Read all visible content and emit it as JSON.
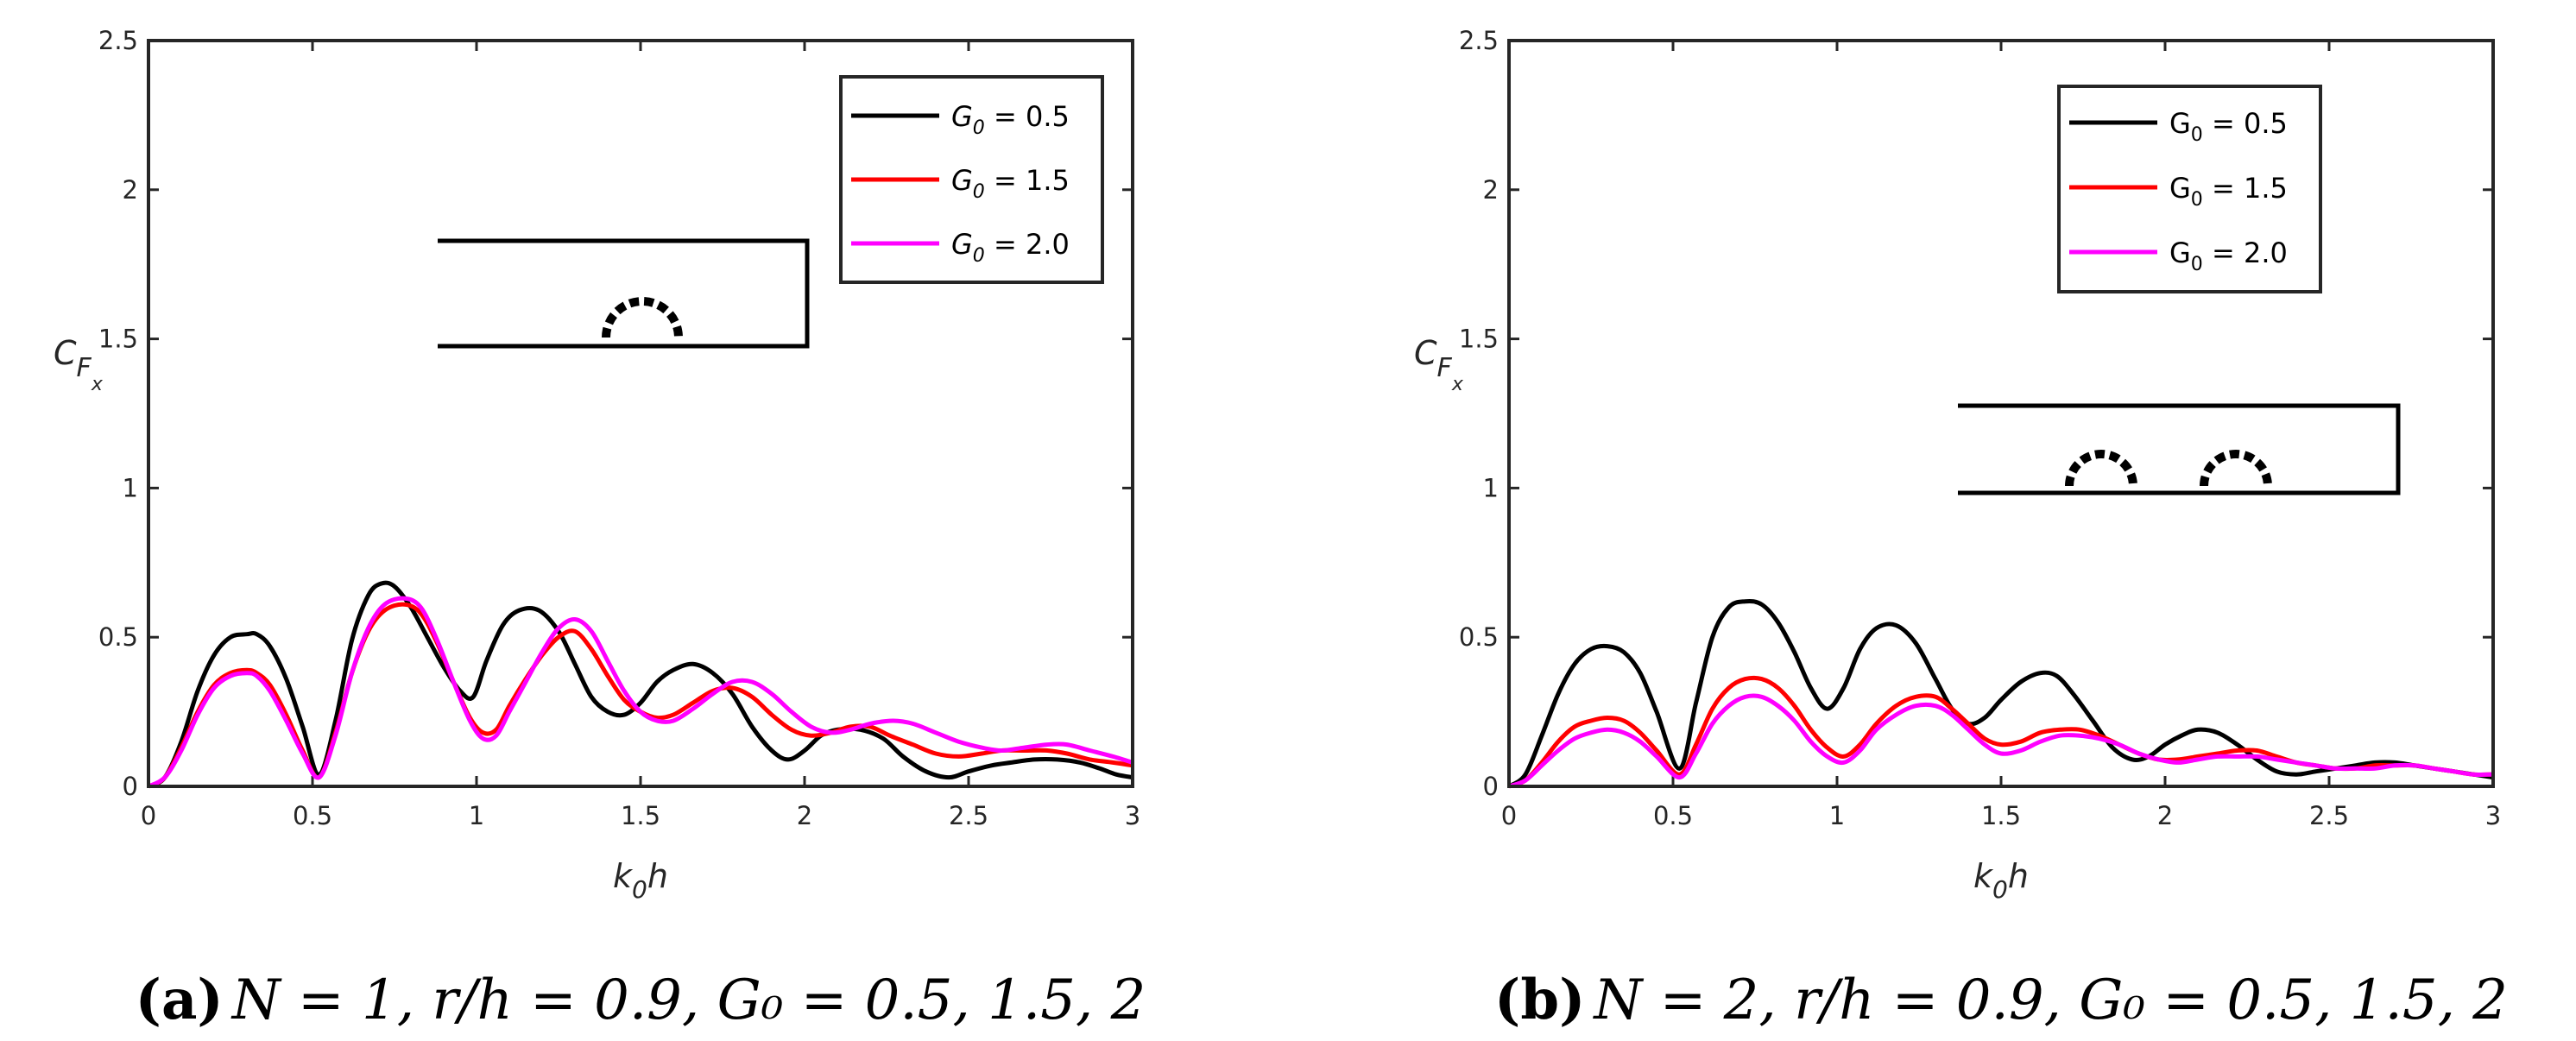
{
  "chart_data": [
    {
      "type": "line",
      "panel": "a",
      "caption_tag": "(a)",
      "caption_body": "N = 1, r/h = 0.9,  G₀ = 0.5, 1.5, 2",
      "xlabel_k": "k",
      "xlabel_sub": "0",
      "xlabel_h": "h",
      "ylabel_c": "C",
      "ylabel_f": "F",
      "ylabel_x": "x",
      "xlim": [
        0,
        3
      ],
      "ylim": [
        0,
        2.5
      ],
      "xticks": [
        0,
        0.5,
        1,
        1.5,
        2,
        2.5,
        3
      ],
      "xtick_labels": [
        "0",
        "0.5",
        "1",
        "1.5",
        "2",
        "2.5",
        "3"
      ],
      "yticks": [
        0,
        0.5,
        1,
        1.5,
        2,
        2.5
      ],
      "ytick_labels": [
        "0",
        "0.5",
        "1",
        "1.5",
        "2",
        "2.5"
      ],
      "legend_position": "top-right",
      "legend_symbol": "G",
      "legend_sub": "0",
      "legend_italic": true,
      "series": [
        {
          "name": "G0 = 0.5",
          "legend_value": " = 0.5",
          "color": "#000000",
          "x": [
            0,
            0.05,
            0.1,
            0.15,
            0.2,
            0.25,
            0.3,
            0.33,
            0.37,
            0.42,
            0.47,
            0.52,
            0.57,
            0.62,
            0.67,
            0.71,
            0.75,
            0.8,
            0.85,
            0.9,
            0.95,
            0.99,
            1.03,
            1.08,
            1.13,
            1.19,
            1.25,
            1.3,
            1.35,
            1.4,
            1.45,
            1.5,
            1.55,
            1.6,
            1.66,
            1.72,
            1.78,
            1.84,
            1.9,
            1.95,
            2.0,
            2.05,
            2.1,
            2.17,
            2.24,
            2.3,
            2.37,
            2.44,
            2.5,
            2.57,
            2.63,
            2.7,
            2.77,
            2.84,
            2.9,
            2.95,
            3.0
          ],
          "y": [
            0,
            0.03,
            0.15,
            0.32,
            0.44,
            0.5,
            0.51,
            0.51,
            0.47,
            0.36,
            0.2,
            0.04,
            0.22,
            0.49,
            0.64,
            0.68,
            0.67,
            0.6,
            0.5,
            0.4,
            0.32,
            0.3,
            0.42,
            0.54,
            0.59,
            0.59,
            0.52,
            0.41,
            0.3,
            0.25,
            0.24,
            0.28,
            0.35,
            0.39,
            0.41,
            0.38,
            0.31,
            0.2,
            0.12,
            0.09,
            0.12,
            0.17,
            0.19,
            0.19,
            0.16,
            0.1,
            0.05,
            0.03,
            0.05,
            0.07,
            0.08,
            0.09,
            0.09,
            0.08,
            0.06,
            0.04,
            0.03
          ]
        },
        {
          "name": "G0 = 1.5",
          "legend_value": " = 1.5",
          "color": "#ff0000",
          "x": [
            0,
            0.05,
            0.1,
            0.15,
            0.2,
            0.25,
            0.3,
            0.33,
            0.37,
            0.42,
            0.47,
            0.52,
            0.57,
            0.62,
            0.67,
            0.72,
            0.78,
            0.83,
            0.88,
            0.93,
            0.98,
            1.02,
            1.06,
            1.1,
            1.15,
            1.2,
            1.25,
            1.3,
            1.35,
            1.4,
            1.45,
            1.5,
            1.55,
            1.6,
            1.66,
            1.72,
            1.78,
            1.84,
            1.9,
            1.96,
            2.02,
            2.08,
            2.14,
            2.2,
            2.26,
            2.33,
            2.4,
            2.47,
            2.54,
            2.6,
            2.67,
            2.74,
            2.8,
            2.87,
            2.94,
            3.0
          ],
          "y": [
            0,
            0.03,
            0.13,
            0.25,
            0.34,
            0.38,
            0.39,
            0.38,
            0.34,
            0.24,
            0.12,
            0.03,
            0.18,
            0.38,
            0.52,
            0.59,
            0.61,
            0.58,
            0.48,
            0.35,
            0.23,
            0.18,
            0.19,
            0.27,
            0.36,
            0.44,
            0.5,
            0.52,
            0.46,
            0.37,
            0.29,
            0.25,
            0.23,
            0.24,
            0.28,
            0.32,
            0.33,
            0.3,
            0.24,
            0.19,
            0.17,
            0.18,
            0.2,
            0.2,
            0.17,
            0.14,
            0.11,
            0.1,
            0.11,
            0.12,
            0.12,
            0.12,
            0.11,
            0.09,
            0.08,
            0.07
          ]
        },
        {
          "name": "G0 = 2.0",
          "legend_value": " = 2.0",
          "color": "#ff00ff",
          "x": [
            0,
            0.05,
            0.1,
            0.15,
            0.2,
            0.25,
            0.3,
            0.33,
            0.37,
            0.42,
            0.47,
            0.52,
            0.57,
            0.62,
            0.67,
            0.72,
            0.78,
            0.83,
            0.88,
            0.93,
            0.98,
            1.02,
            1.06,
            1.1,
            1.15,
            1.2,
            1.25,
            1.3,
            1.35,
            1.4,
            1.45,
            1.5,
            1.55,
            1.6,
            1.66,
            1.72,
            1.78,
            1.84,
            1.9,
            1.96,
            2.02,
            2.08,
            2.14,
            2.2,
            2.27,
            2.33,
            2.4,
            2.47,
            2.54,
            2.6,
            2.67,
            2.74,
            2.8,
            2.87,
            2.94,
            3.0
          ],
          "y": [
            0,
            0.03,
            0.12,
            0.24,
            0.33,
            0.37,
            0.38,
            0.37,
            0.32,
            0.22,
            0.11,
            0.03,
            0.17,
            0.38,
            0.53,
            0.61,
            0.63,
            0.6,
            0.49,
            0.35,
            0.22,
            0.16,
            0.17,
            0.25,
            0.35,
            0.45,
            0.53,
            0.56,
            0.52,
            0.42,
            0.32,
            0.25,
            0.22,
            0.22,
            0.26,
            0.31,
            0.35,
            0.35,
            0.31,
            0.25,
            0.2,
            0.18,
            0.19,
            0.21,
            0.22,
            0.21,
            0.18,
            0.15,
            0.13,
            0.12,
            0.13,
            0.14,
            0.14,
            0.12,
            0.1,
            0.08
          ]
        }
      ]
    },
    {
      "type": "line",
      "panel": "b",
      "caption_tag": "(b)",
      "caption_body": "N = 2, r/h = 0.9,  G₀ = 0.5, 1.5, 2",
      "xlabel_k": "k",
      "xlabel_sub": "0",
      "xlabel_h": "h",
      "ylabel_c": "C",
      "ylabel_f": "F",
      "ylabel_x": "x",
      "xlim": [
        0,
        3
      ],
      "ylim": [
        0,
        2.5
      ],
      "xticks": [
        0,
        0.5,
        1,
        1.5,
        2,
        2.5,
        3
      ],
      "xtick_labels": [
        "0",
        "0.5",
        "1",
        "1.5",
        "2",
        "2.5",
        "3"
      ],
      "yticks": [
        0,
        0.5,
        1,
        1.5,
        2,
        2.5
      ],
      "ytick_labels": [
        "0",
        "0.5",
        "1",
        "1.5",
        "2",
        "2.5"
      ],
      "legend_position": "top-right",
      "legend_symbol": "G",
      "legend_sub": "0",
      "legend_italic": false,
      "series": [
        {
          "name": "G0 = 0.5",
          "legend_value": " = 0.5",
          "color": "#000000",
          "x": [
            0,
            0.05,
            0.1,
            0.15,
            0.2,
            0.25,
            0.3,
            0.35,
            0.4,
            0.45,
            0.52,
            0.57,
            0.62,
            0.67,
            0.72,
            0.77,
            0.82,
            0.87,
            0.92,
            0.97,
            1.02,
            1.07,
            1.12,
            1.18,
            1.24,
            1.3,
            1.35,
            1.4,
            1.45,
            1.5,
            1.56,
            1.62,
            1.67,
            1.72,
            1.78,
            1.84,
            1.9,
            1.95,
            2.0,
            2.05,
            2.1,
            2.16,
            2.22,
            2.28,
            2.34,
            2.4,
            2.46,
            2.52,
            2.58,
            2.64,
            2.7,
            2.76,
            2.82,
            2.88,
            2.94,
            3.0
          ],
          "y": [
            0,
            0.04,
            0.17,
            0.31,
            0.41,
            0.46,
            0.47,
            0.45,
            0.38,
            0.25,
            0.06,
            0.28,
            0.5,
            0.6,
            0.62,
            0.61,
            0.55,
            0.45,
            0.33,
            0.26,
            0.33,
            0.46,
            0.53,
            0.54,
            0.48,
            0.36,
            0.26,
            0.21,
            0.23,
            0.29,
            0.35,
            0.38,
            0.37,
            0.31,
            0.22,
            0.13,
            0.09,
            0.1,
            0.14,
            0.17,
            0.19,
            0.18,
            0.14,
            0.09,
            0.05,
            0.04,
            0.05,
            0.06,
            0.07,
            0.08,
            0.08,
            0.07,
            0.06,
            0.05,
            0.04,
            0.03
          ]
        },
        {
          "name": "G0 = 1.5",
          "legend_value": " = 1.5",
          "color": "#ff0000",
          "x": [
            0,
            0.05,
            0.1,
            0.15,
            0.2,
            0.25,
            0.3,
            0.35,
            0.4,
            0.45,
            0.52,
            0.57,
            0.62,
            0.67,
            0.72,
            0.77,
            0.82,
            0.87,
            0.92,
            0.97,
            1.02,
            1.07,
            1.12,
            1.18,
            1.24,
            1.3,
            1.35,
            1.4,
            1.45,
            1.5,
            1.56,
            1.62,
            1.68,
            1.74,
            1.8,
            1.86,
            1.92,
            1.98,
            2.04,
            2.1,
            2.16,
            2.22,
            2.28,
            2.34,
            2.4,
            2.46,
            2.52,
            2.58,
            2.64,
            2.7,
            2.76,
            2.82,
            2.88,
            2.94,
            3.0
          ],
          "y": [
            0,
            0.02,
            0.08,
            0.15,
            0.2,
            0.22,
            0.23,
            0.22,
            0.18,
            0.12,
            0.04,
            0.14,
            0.26,
            0.33,
            0.36,
            0.36,
            0.33,
            0.27,
            0.19,
            0.13,
            0.1,
            0.14,
            0.21,
            0.27,
            0.3,
            0.3,
            0.26,
            0.21,
            0.16,
            0.14,
            0.15,
            0.18,
            0.19,
            0.19,
            0.17,
            0.14,
            0.11,
            0.09,
            0.09,
            0.1,
            0.11,
            0.12,
            0.12,
            0.1,
            0.08,
            0.07,
            0.06,
            0.06,
            0.07,
            0.07,
            0.07,
            0.06,
            0.05,
            0.04,
            0.04
          ]
        },
        {
          "name": "G0 = 2.0",
          "legend_value": " = 2.0",
          "color": "#ff00ff",
          "x": [
            0,
            0.05,
            0.1,
            0.15,
            0.2,
            0.25,
            0.3,
            0.35,
            0.4,
            0.45,
            0.52,
            0.57,
            0.62,
            0.67,
            0.72,
            0.77,
            0.82,
            0.87,
            0.92,
            0.97,
            1.02,
            1.07,
            1.12,
            1.18,
            1.24,
            1.3,
            1.35,
            1.4,
            1.45,
            1.5,
            1.56,
            1.62,
            1.68,
            1.74,
            1.8,
            1.86,
            1.92,
            1.98,
            2.04,
            2.1,
            2.16,
            2.22,
            2.28,
            2.34,
            2.4,
            2.46,
            2.52,
            2.58,
            2.64,
            2.7,
            2.76,
            2.82,
            2.88,
            2.94,
            3.0
          ],
          "y": [
            0,
            0.02,
            0.07,
            0.12,
            0.16,
            0.18,
            0.19,
            0.18,
            0.15,
            0.1,
            0.03,
            0.11,
            0.21,
            0.27,
            0.3,
            0.3,
            0.27,
            0.22,
            0.15,
            0.1,
            0.08,
            0.12,
            0.19,
            0.24,
            0.27,
            0.27,
            0.24,
            0.19,
            0.14,
            0.11,
            0.12,
            0.15,
            0.17,
            0.17,
            0.16,
            0.14,
            0.11,
            0.09,
            0.08,
            0.09,
            0.1,
            0.1,
            0.1,
            0.09,
            0.08,
            0.07,
            0.06,
            0.06,
            0.06,
            0.07,
            0.07,
            0.06,
            0.05,
            0.04,
            0.04
          ]
        }
      ]
    }
  ]
}
